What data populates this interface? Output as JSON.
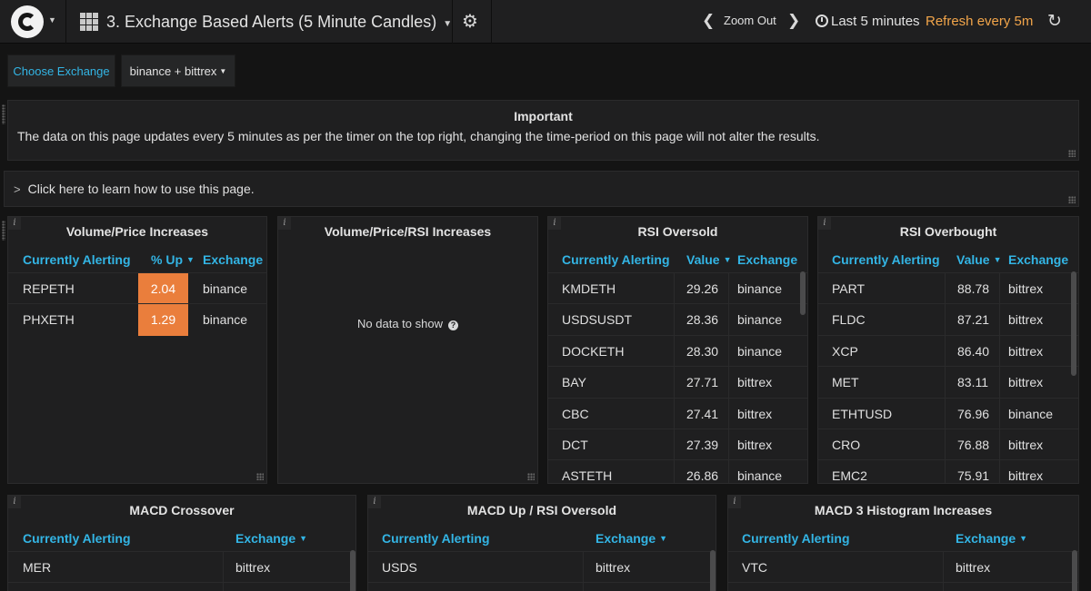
{
  "navbar": {
    "dashboard_title": "3. Exchange Based Alerts (5 Minute Candles)",
    "zoom_out": "Zoom Out",
    "time_range": "Last 5 minutes",
    "refresh": "Refresh every 5m",
    "refresh_color": "#f2a54a"
  },
  "variables": {
    "label": "Choose Exchange",
    "value": "binance + bittrex",
    "label_color": "#33b5e5"
  },
  "important_panel": {
    "title": "Important",
    "text": "The data on this page updates every 5 minutes as per the timer on the top right, changing the time-period on this page will not alter the results."
  },
  "howto_row": {
    "text": "Click here to learn how to use this page."
  },
  "panels": {
    "vol_price": {
      "title": "Volume/Price Increases",
      "headers": [
        "Currently Alerting",
        "% Up",
        "Exchange"
      ],
      "rows": [
        [
          "REPETH",
          "2.04",
          "binance"
        ],
        [
          "PHXETH",
          "1.29",
          "binance"
        ]
      ]
    },
    "vol_price_rsi": {
      "title": "Volume/Price/RSI Increases",
      "no_data": "No data to show"
    },
    "rsi_oversold": {
      "title": "RSI Oversold",
      "headers": [
        "Currently Alerting",
        "Value",
        "Exchange"
      ],
      "rows": [
        [
          "KMDETH",
          "29.26",
          "binance"
        ],
        [
          "USDSUSDT",
          "28.36",
          "binance"
        ],
        [
          "DOCKETH",
          "28.30",
          "binance"
        ],
        [
          "BAY",
          "27.71",
          "bittrex"
        ],
        [
          "CBC",
          "27.41",
          "bittrex"
        ],
        [
          "DCT",
          "27.39",
          "bittrex"
        ],
        [
          "ASTETH",
          "26.86",
          "binance"
        ]
      ]
    },
    "rsi_overbought": {
      "title": "RSI Overbought",
      "headers": [
        "Currently Alerting",
        "Value",
        "Exchange"
      ],
      "rows": [
        [
          "PART",
          "88.78",
          "bittrex"
        ],
        [
          "FLDC",
          "87.21",
          "bittrex"
        ],
        [
          "XCP",
          "86.40",
          "bittrex"
        ],
        [
          "MET",
          "83.11",
          "bittrex"
        ],
        [
          "ETHTUSD",
          "76.96",
          "binance"
        ],
        [
          "CRO",
          "76.88",
          "bittrex"
        ],
        [
          "EMC2",
          "75.91",
          "bittrex"
        ]
      ]
    },
    "macd_crossover": {
      "title": "MACD Crossover",
      "headers": [
        "Currently Alerting",
        "Exchange"
      ],
      "rows": [
        [
          "MER",
          "bittrex"
        ]
      ]
    },
    "macd_up_rsi": {
      "title": "MACD Up / RSI Oversold",
      "headers": [
        "Currently Alerting",
        "Exchange"
      ],
      "rows": [
        [
          "USDS",
          "bittrex"
        ]
      ]
    },
    "macd_hist": {
      "title": "MACD 3 Histogram Increases",
      "headers": [
        "Currently Alerting",
        "Exchange"
      ],
      "rows": [
        [
          "VTC",
          "bittrex"
        ]
      ]
    }
  }
}
